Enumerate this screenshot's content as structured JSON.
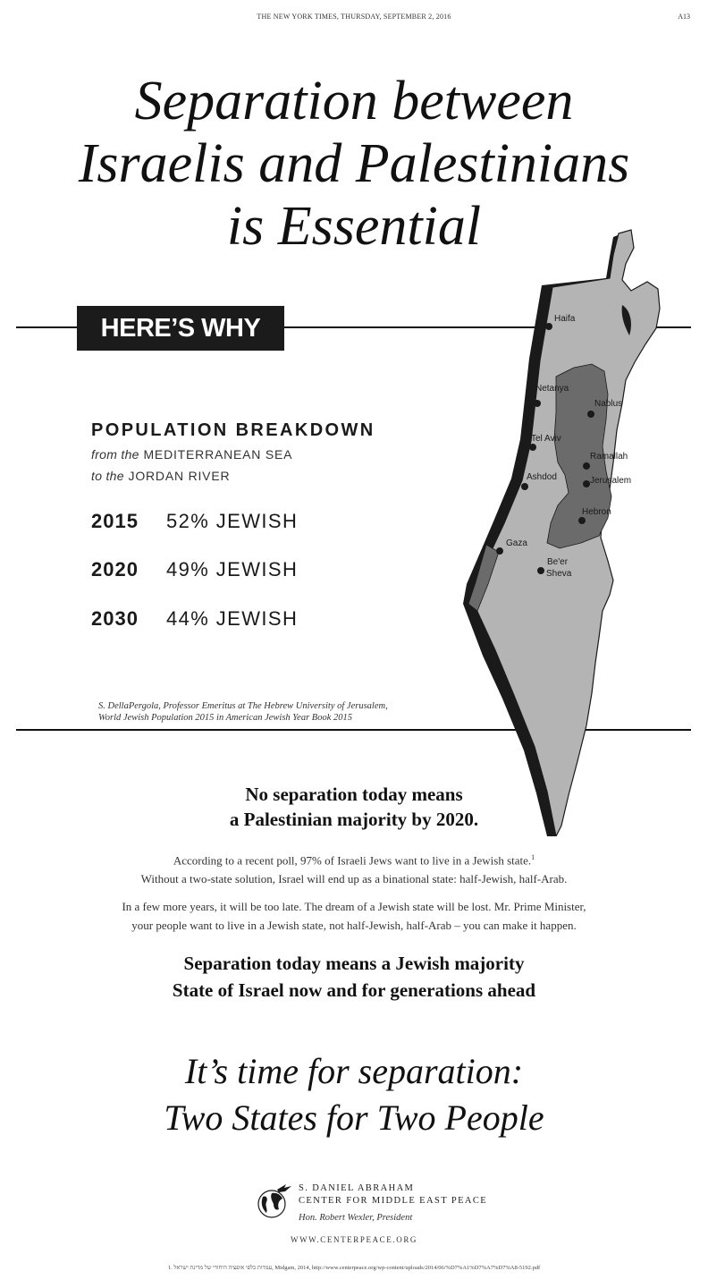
{
  "masthead": {
    "date_line": "THE NEW YORK TIMES, THURSDAY, SEPTEMBER 2, 2016",
    "page_number": "A13"
  },
  "headline": {
    "line1": "Separation between",
    "line2": "Israelis and Palestinians",
    "line3": "is Essential"
  },
  "banner": {
    "label": "HERE’S WHY"
  },
  "population": {
    "title": "POPULATION BREAKDOWN",
    "sub1_prefix": "from the",
    "sub1_place": "MEDITERRANEAN SEA",
    "sub2_prefix": "to the",
    "sub2_place": "JORDAN RIVER",
    "stats": [
      {
        "year": "2015",
        "value": "52% JEWISH"
      },
      {
        "year": "2020",
        "value": "49% JEWISH"
      },
      {
        "year": "2030",
        "value": "44% JEWISH"
      }
    ],
    "source_line1": "S. DellaPergola, Professor Emeritus at The Hebrew University of Jerusalem,",
    "source_line2": "World Jewish Population 2015 in American Jewish Year Book 2015"
  },
  "map": {
    "cities": [
      "Haifa",
      "Netanya",
      "Nablus",
      "Tel Aviv",
      "Ramallah",
      "Ashdod",
      "Jerusalem",
      "Hebron",
      "Gaza",
      "Be'er",
      "Sheva"
    ],
    "colors": {
      "israel": "#b4b4b4",
      "territories": "#6b6b6b",
      "outline": "#1a1a1a"
    }
  },
  "claim1": {
    "line1": "No separation today means",
    "line2": "a Palestinian majority by 2020."
  },
  "paragraph1": {
    "line1": "According to a recent poll, 97% of Israeli Jews want to live in a Jewish state.",
    "footnote_mark": "1",
    "line2": "Without a two-state solution, Israel will end up as a binational state: half-Jewish, half-Arab."
  },
  "paragraph2": {
    "line1": "In a few more years, it will be too late. The dream of a Jewish state will be lost. Mr. Prime Minister,",
    "line2": "your people want to live in a Jewish state, not half-Jewish, half-Arab – you can make it happen."
  },
  "claim2": {
    "line1": "Separation today means a Jewish majority",
    "line2": "State of Israel now and for generations ahead"
  },
  "closing": {
    "line1": "It’s time for separation:",
    "line2": "Two States for Two People"
  },
  "org": {
    "logo_icon": "globe-dove-icon",
    "name_line1": "S. DANIEL ABRAHAM",
    "name_line2": "CENTER FOR MIDDLE EAST PEACE",
    "president": "Hon. Robert Wexler, President",
    "website": "WWW.CENTERPEACE.ORG"
  },
  "footnote": {
    "text": "1. עמדות כלפי אופציה היחודי של מדינת ישראל, Midgam, 2014, http://www.centerpeace.org/wp-content/uploads/2014/06/%D7%A1%D7%A7%D7%A8-5192.pdf"
  }
}
